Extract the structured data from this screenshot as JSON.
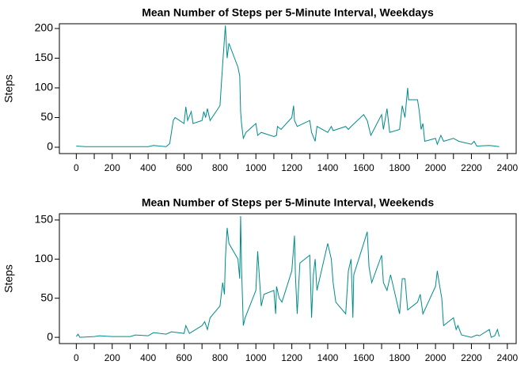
{
  "chart_data": [
    {
      "type": "line",
      "title": "Mean Number of Steps per 5-Minute Interval, Weekdays",
      "y_label": "Steps",
      "color": "#008b8b",
      "x": [
        0,
        50,
        100,
        200,
        300,
        400,
        430,
        500,
        520,
        540,
        550,
        600,
        610,
        620,
        640,
        650,
        700,
        710,
        720,
        730,
        745,
        800,
        815,
        830,
        840,
        850,
        900,
        910,
        915,
        920,
        930,
        945,
        1000,
        1010,
        1030,
        1100,
        1115,
        1120,
        1140,
        1200,
        1210,
        1215,
        1230,
        1300,
        1310,
        1330,
        1340,
        1400,
        1420,
        1430,
        1500,
        1515,
        1530,
        1600,
        1620,
        1640,
        1700,
        1710,
        1730,
        1745,
        1800,
        1815,
        1830,
        1845,
        1850,
        1900,
        1910,
        1920,
        1930,
        1940,
        2000,
        2010,
        2030,
        2045,
        2100,
        2130,
        2200,
        2215,
        2230,
        2300,
        2330,
        2355
      ],
      "values": [
        2,
        1,
        1,
        1,
        1,
        1,
        3,
        1,
        6,
        45,
        50,
        40,
        68,
        45,
        60,
        40,
        45,
        60,
        50,
        65,
        45,
        70,
        140,
        205,
        150,
        175,
        135,
        120,
        60,
        40,
        15,
        25,
        40,
        20,
        25,
        18,
        20,
        35,
        30,
        50,
        70,
        45,
        35,
        45,
        25,
        10,
        35,
        25,
        35,
        28,
        35,
        30,
        35,
        55,
        45,
        20,
        55,
        30,
        65,
        25,
        30,
        70,
        50,
        100,
        80,
        80,
        60,
        30,
        40,
        10,
        15,
        5,
        20,
        10,
        15,
        10,
        5,
        10,
        2,
        3,
        2,
        1
      ],
      "xlim": [
        -94.2,
        2449.2
      ],
      "ylim": [
        -10.7,
        208
      ],
      "xticks": [
        0,
        200,
        400,
        600,
        800,
        1000,
        1200,
        1400,
        1600,
        1800,
        2000,
        2200,
        2400
      ],
      "x_minor_ticks": [
        100,
        300,
        500,
        700,
        900,
        1100,
        1300,
        1500,
        1700,
        1900,
        2100,
        2300
      ],
      "yticks": [
        0,
        50,
        100,
        150,
        200
      ]
    },
    {
      "type": "line",
      "title": "Mean Number of Steps per 5-Minute Interval, Weekends",
      "y_label": "Steps",
      "color": "#008b8b",
      "x": [
        0,
        10,
        20,
        100,
        130,
        200,
        300,
        330,
        400,
        430,
        500,
        530,
        600,
        610,
        630,
        700,
        715,
        730,
        745,
        800,
        815,
        825,
        830,
        840,
        850,
        900,
        910,
        915,
        920,
        930,
        940,
        1000,
        1010,
        1030,
        1045,
        1100,
        1110,
        1115,
        1130,
        1145,
        1200,
        1215,
        1220,
        1230,
        1245,
        1300,
        1310,
        1320,
        1330,
        1340,
        1400,
        1420,
        1430,
        1445,
        1500,
        1515,
        1530,
        1540,
        1545,
        1600,
        1620,
        1630,
        1645,
        1700,
        1710,
        1730,
        1750,
        1800,
        1815,
        1830,
        1845,
        1900,
        1915,
        1930,
        2000,
        2010,
        2020,
        2035,
        2045,
        2100,
        2115,
        2125,
        2145,
        2200,
        2230,
        2245,
        2300,
        2310,
        2330,
        2345,
        2355
      ],
      "values": [
        1,
        4,
        0,
        1,
        2,
        1,
        1,
        3,
        2,
        6,
        4,
        7,
        5,
        15,
        5,
        15,
        20,
        10,
        25,
        40,
        70,
        55,
        100,
        140,
        120,
        100,
        75,
        155,
        90,
        15,
        25,
        60,
        110,
        40,
        55,
        60,
        30,
        65,
        50,
        45,
        85,
        130,
        80,
        30,
        95,
        105,
        25,
        80,
        100,
        60,
        120,
        100,
        70,
        45,
        30,
        85,
        100,
        25,
        80,
        120,
        135,
        90,
        70,
        105,
        70,
        60,
        80,
        30,
        75,
        75,
        35,
        45,
        55,
        30,
        65,
        85,
        70,
        50,
        15,
        25,
        10,
        15,
        3,
        0,
        3,
        2,
        10,
        0,
        2,
        10,
        1
      ],
      "xlim": [
        -94.2,
        2449.2
      ],
      "ylim": [
        -8,
        158
      ],
      "xticks": [
        0,
        200,
        400,
        600,
        800,
        1000,
        1200,
        1400,
        1600,
        1800,
        2000,
        2200,
        2400
      ],
      "x_minor_ticks": [
        100,
        300,
        500,
        700,
        900,
        1100,
        1300,
        1500,
        1700,
        1900,
        2100,
        2300
      ],
      "yticks": [
        0,
        50,
        100,
        150
      ]
    }
  ]
}
